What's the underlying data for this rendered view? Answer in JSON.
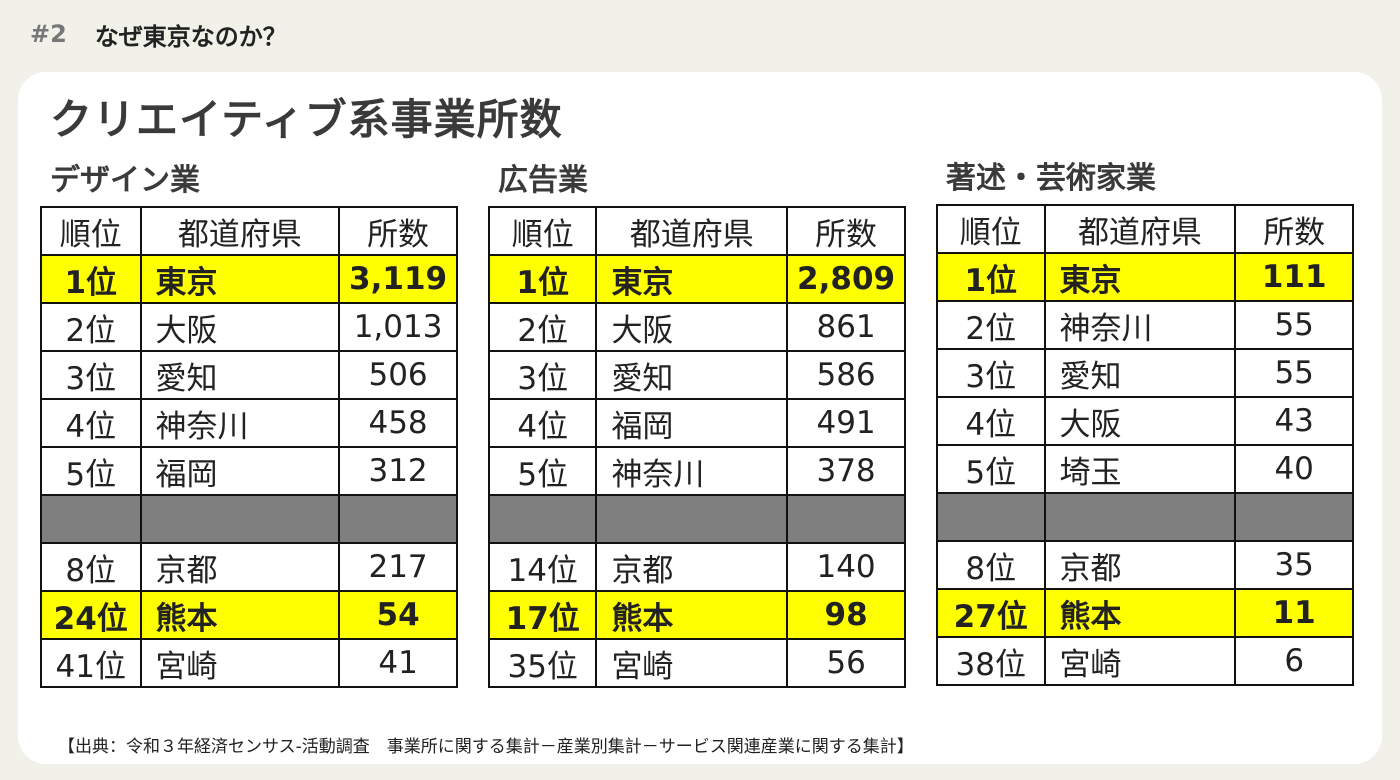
{
  "header": {
    "number": "#2",
    "title": "なぜ東京なのか？"
  },
  "main_title": "クリエイティブ系事業所数",
  "columns": [
    "順位",
    "都道府県",
    "所数"
  ],
  "tables": [
    {
      "title": "デザイン業",
      "rows": [
        {
          "rank": "1位",
          "pref": "東京",
          "count": "3,119",
          "highlight": true
        },
        {
          "rank": "2位",
          "pref": "大阪",
          "count": "1,013"
        },
        {
          "rank": "3位",
          "pref": "愛知",
          "count": "506"
        },
        {
          "rank": "4位",
          "pref": "神奈川",
          "count": "458"
        },
        {
          "rank": "5位",
          "pref": "福岡",
          "count": "312"
        },
        {
          "gap": true
        },
        {
          "rank": "8位",
          "pref": "京都",
          "count": "217"
        },
        {
          "rank": "24位",
          "pref": "熊本",
          "count": "54",
          "highlight": true
        },
        {
          "rank": "41位",
          "pref": "宮崎",
          "count": "41"
        }
      ]
    },
    {
      "title": "広告業",
      "rows": [
        {
          "rank": "1位",
          "pref": "東京",
          "count": "2,809",
          "highlight": true
        },
        {
          "rank": "2位",
          "pref": "大阪",
          "count": "861"
        },
        {
          "rank": "3位",
          "pref": "愛知",
          "count": "586"
        },
        {
          "rank": "4位",
          "pref": "福岡",
          "count": "491"
        },
        {
          "rank": "5位",
          "pref": "神奈川",
          "count": "378"
        },
        {
          "gap": true
        },
        {
          "rank": "14位",
          "pref": "京都",
          "count": "140"
        },
        {
          "rank": "17位",
          "pref": "熊本",
          "count": "98",
          "highlight": true
        },
        {
          "rank": "35位",
          "pref": "宮崎",
          "count": "56"
        }
      ]
    },
    {
      "title": "著述・芸術家業",
      "rows": [
        {
          "rank": "1位",
          "pref": "東京",
          "count": "111",
          "highlight": true
        },
        {
          "rank": "2位",
          "pref": "神奈川",
          "count": "55"
        },
        {
          "rank": "3位",
          "pref": "愛知",
          "count": "55"
        },
        {
          "rank": "4位",
          "pref": "大阪",
          "count": "43"
        },
        {
          "rank": "5位",
          "pref": "埼玉",
          "count": "40"
        },
        {
          "gap": true
        },
        {
          "rank": "8位",
          "pref": "京都",
          "count": "35"
        },
        {
          "rank": "27位",
          "pref": "熊本",
          "count": "11",
          "highlight": true
        },
        {
          "rank": "38位",
          "pref": "宮崎",
          "count": "6"
        }
      ]
    }
  ],
  "source": "【出典：令和３年経済センサス-活動調査　事業所に関する集計－産業別集計－サービス関連産業に関する集計】",
  "colors": {
    "highlight": "#ffff00",
    "gap": "#7f7f7f",
    "background": "#f1f1ea"
  }
}
